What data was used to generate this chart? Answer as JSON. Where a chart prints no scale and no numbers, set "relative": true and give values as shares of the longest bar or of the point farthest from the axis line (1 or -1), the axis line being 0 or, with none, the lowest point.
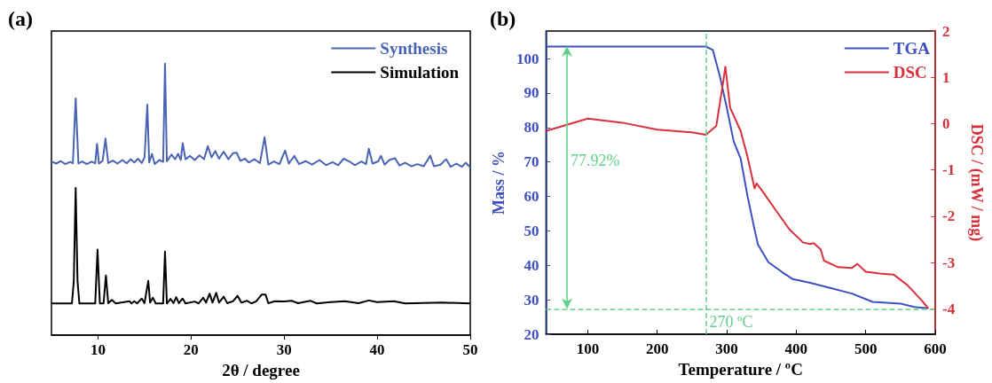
{
  "chart_data": [
    {
      "type": "line",
      "title": "(a)",
      "xlabel": "2θ / degree",
      "relative": true,
      "xlim": [
        5,
        50
      ],
      "xticks": [
        10,
        20,
        30,
        40,
        50
      ],
      "legend": "top right",
      "grid": false,
      "marker": "none",
      "line_style": "solid",
      "series": [
        {
          "name": "Synthesis",
          "color": "#4a64b5",
          "x": [
            5,
            5.5,
            6,
            6.5,
            7,
            7.3,
            7.6,
            7.9,
            8.3,
            8.8,
            9.3,
            9.7,
            9.9,
            10.1,
            10.5,
            10.8,
            11.1,
            11.6,
            12.1,
            12.6,
            13.1,
            13.5,
            13.9,
            14.3,
            14.7,
            15.0,
            15.3,
            15.5,
            15.8,
            16.1,
            16.6,
            17.0,
            17.2,
            17.4,
            17.9,
            18.3,
            18.6,
            18.9,
            19.1,
            19.4,
            19.9,
            20.4,
            20.9,
            21.4,
            21.8,
            22.2,
            22.6,
            23.0,
            23.5,
            24.0,
            24.5,
            24.9,
            25.3,
            25.8,
            26.2,
            26.8,
            27.4,
            27.9,
            28.3,
            28.9,
            29.5,
            30.1,
            30.5,
            31.1,
            31.6,
            32.3,
            33.0,
            33.8,
            34.5,
            35.2,
            35.8,
            36.4,
            37.0,
            37.6,
            38.3,
            38.8,
            39.1,
            39.5,
            40.1,
            40.4,
            40.8,
            41.3,
            41.9,
            42.4,
            43.0,
            43.7,
            44.3,
            45.0,
            45.7,
            46.1,
            46.8,
            47.4,
            47.9,
            48.5,
            49.1,
            49.5,
            50
          ],
          "values": [
            0.64,
            0.632,
            0.641,
            0.63,
            0.638,
            0.633,
            0.872,
            0.632,
            0.64,
            0.63,
            0.639,
            0.633,
            0.705,
            0.632,
            0.642,
            0.724,
            0.634,
            0.643,
            0.632,
            0.645,
            0.633,
            0.648,
            0.636,
            0.65,
            0.634,
            0.655,
            0.849,
            0.636,
            0.668,
            0.63,
            0.645,
            0.638,
            1.0,
            0.64,
            0.665,
            0.648,
            0.668,
            0.645,
            0.707,
            0.648,
            0.66,
            0.645,
            0.662,
            0.648,
            0.696,
            0.655,
            0.678,
            0.65,
            0.676,
            0.648,
            0.67,
            0.672,
            0.642,
            0.65,
            0.636,
            0.648,
            0.634,
            0.729,
            0.628,
            0.64,
            0.63,
            0.68,
            0.632,
            0.66,
            0.63,
            0.641,
            0.628,
            0.645,
            0.626,
            0.637,
            0.626,
            0.65,
            0.64,
            0.626,
            0.64,
            0.63,
            0.687,
            0.632,
            0.64,
            0.66,
            0.628,
            0.645,
            0.652,
            0.625,
            0.635,
            0.622,
            0.63,
            0.622,
            0.661,
            0.622,
            0.628,
            0.648,
            0.62,
            0.632,
            0.62,
            0.635,
            0.618
          ]
        },
        {
          "name": "Simulation",
          "color": "#000000",
          "x": [
            5,
            7.2,
            7.4,
            7.6,
            7.8,
            8.0,
            9.7,
            9.95,
            10.2,
            10.6,
            10.85,
            11.1,
            11.5,
            11.9,
            13.4,
            13.6,
            13.9,
            14.2,
            14.7,
            15.0,
            15.4,
            15.6,
            15.9,
            16.2,
            17.0,
            17.2,
            17.4,
            17.8,
            18.1,
            18.4,
            18.7,
            19.1,
            19.4,
            20.4,
            20.8,
            21.3,
            21.6,
            22.0,
            22.3,
            22.7,
            23.0,
            23.5,
            23.9,
            24.5,
            25.0,
            25.4,
            26.0,
            26.5,
            27.0,
            27.6,
            28.0,
            28.3,
            29.0,
            30.0,
            30.8,
            31.5,
            32.8,
            33.5,
            35.0,
            36.5,
            38.0,
            39.1,
            40.0,
            41.8,
            43.0,
            45.0,
            47.0,
            50
          ],
          "values": [
            0.117,
            0.117,
            0.2,
            0.542,
            0.2,
            0.117,
            0.117,
            0.315,
            0.117,
            0.117,
            0.22,
            0.118,
            0.13,
            0.117,
            0.125,
            0.117,
            0.125,
            0.117,
            0.135,
            0.118,
            0.2,
            0.12,
            0.138,
            0.117,
            0.117,
            0.308,
            0.117,
            0.134,
            0.118,
            0.14,
            0.118,
            0.135,
            0.117,
            0.124,
            0.117,
            0.138,
            0.12,
            0.153,
            0.12,
            0.156,
            0.12,
            0.142,
            0.118,
            0.125,
            0.145,
            0.12,
            0.127,
            0.117,
            0.125,
            0.15,
            0.15,
            0.118,
            0.125,
            0.124,
            0.127,
            0.118,
            0.127,
            0.117,
            0.122,
            0.125,
            0.118,
            0.128,
            0.122,
            0.125,
            0.117,
            0.119,
            0.12,
            0.117
          ]
        }
      ]
    },
    {
      "type": "line",
      "title": "(b)",
      "xlabel": "Temperature / ºC",
      "ylabel": "Mass / %",
      "y2label": "DSC / (mW / mg)",
      "xlim": [
        40,
        600
      ],
      "xticks": [
        100,
        200,
        300,
        400,
        500,
        600
      ],
      "ylim": [
        20,
        108
      ],
      "yticks": [
        20,
        30,
        40,
        50,
        60,
        70,
        80,
        90,
        100
      ],
      "y2lim": [
        -4.55,
        2
      ],
      "y2ticks": [
        -4,
        -3,
        -2,
        -1,
        0,
        1,
        2
      ],
      "legend": "top right",
      "grid": false,
      "marker": "none",
      "line_style": "solid",
      "series": [
        {
          "name": "TGA",
          "color": "#3f50c0",
          "x": [
            40,
            270,
            280,
            290,
            300,
            310,
            320,
            330,
            340,
            345,
            360,
            380,
            395,
            420,
            450,
            480,
            510,
            550,
            570,
            590
          ],
          "values": [
            103.5,
            103.5,
            102.5,
            95,
            85.8,
            76,
            71,
            60,
            50.4,
            46,
            40.9,
            38,
            36,
            34.9,
            33.4,
            31.8,
            29.4,
            28.9,
            27.9,
            27.5
          ]
        },
        {
          "name": "DSC",
          "color": "#d9303a",
          "axis": "y2",
          "x": [
            40,
            100,
            150,
            200,
            250,
            270,
            285,
            295,
            298,
            305,
            320,
            330,
            340,
            343,
            350,
            370,
            390,
            410,
            420,
            425,
            435,
            440,
            460,
            480,
            488,
            500,
            520,
            540,
            560,
            580,
            590
          ],
          "values": [
            -0.16,
            0.11,
            0.02,
            -0.13,
            -0.19,
            -0.24,
            -0.05,
            0.91,
            1.23,
            0.34,
            -0.16,
            -0.72,
            -1.4,
            -1.29,
            -1.43,
            -1.86,
            -2.28,
            -2.57,
            -2.6,
            -2.58,
            -2.71,
            -2.96,
            -3.1,
            -3.12,
            -3.03,
            -3.2,
            -3.24,
            -3.26,
            -3.49,
            -3.81,
            -3.99
          ]
        }
      ],
      "ref_lines": [
        {
          "axis": "x",
          "value": 270,
          "label": "270 ºC",
          "color": "#5fcf8a",
          "line_style": "dashed"
        },
        {
          "axis": "y",
          "value": 27.2,
          "color": "#5fcf8a",
          "line_style": "dashed"
        }
      ],
      "annotations": [
        "77.92%"
      ]
    }
  ]
}
